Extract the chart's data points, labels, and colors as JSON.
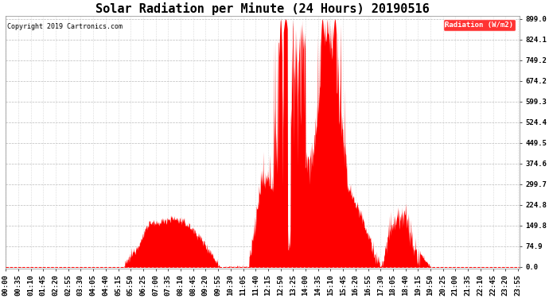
{
  "title": "Solar Radiation per Minute (24 Hours) 20190516",
  "copyright_text": "Copyright 2019 Cartronics.com",
  "legend_label": "Radiation (W/m2)",
  "ylabel_values": [
    0.0,
    74.9,
    149.8,
    224.8,
    299.7,
    374.6,
    449.5,
    524.4,
    599.3,
    674.2,
    749.2,
    824.1,
    899.0
  ],
  "y_max": 910,
  "y_min": -5,
  "fill_color": "#FF0000",
  "bg_color": "#FFFFFF",
  "grid_color_x": "#BBBBBB",
  "grid_color_y": "#BBBBBB",
  "dashed_line_color": "#FF0000",
  "title_fontsize": 11,
  "tick_fontsize": 6.5,
  "legend_bg_color": "#FF0000",
  "legend_text_color": "#FFFFFF",
  "tick_interval_minutes": 35,
  "total_minutes": 1440
}
